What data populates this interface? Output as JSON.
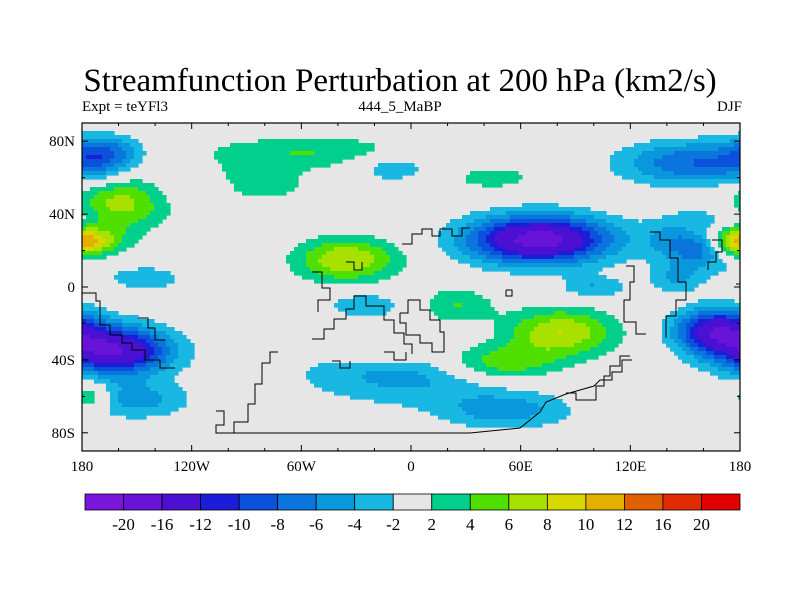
{
  "title": "Streamfunction Perturbation at 200 hPa (km2/s)",
  "subtitle_left": "Expt = teYFl3",
  "subtitle_center": "444_5_MaBP",
  "subtitle_right": "DJF",
  "map": {
    "lon_range": [
      -180,
      180
    ],
    "lat_range": [
      -90,
      90
    ],
    "lon_ticks": [
      {
        "value": -180,
        "label": "180"
      },
      {
        "value": -120,
        "label": "120W"
      },
      {
        "value": -60,
        "label": "60W"
      },
      {
        "value": 0,
        "label": "0"
      },
      {
        "value": 60,
        "label": "60E"
      },
      {
        "value": 120,
        "label": "120E"
      },
      {
        "value": 180,
        "label": "180"
      }
    ],
    "lat_ticks": [
      {
        "value": 80,
        "label": "80N"
      },
      {
        "value": 40,
        "label": "40N"
      },
      {
        "value": 0,
        "label": "0"
      },
      {
        "value": -40,
        "label": "40S"
      },
      {
        "value": -80,
        "label": "80S"
      }
    ],
    "background_color": "#e6e6e6",
    "features": [
      {
        "lon": 164,
        "lat": 26,
        "amp": -14,
        "rx": 26,
        "ry": 13
      },
      {
        "lon": 70,
        "lat": 26,
        "amp": -18,
        "rx": 38,
        "ry": 13
      },
      {
        "lon": -162,
        "lat": -35,
        "amp": -16,
        "rx": 30,
        "ry": 13
      },
      {
        "lon": 167,
        "lat": -24,
        "amp": -14,
        "rx": 22,
        "ry": 12
      },
      {
        "lon": 155,
        "lat": 68,
        "amp": -8,
        "rx": 40,
        "ry": 12
      },
      {
        "lon": -170,
        "lat": 70,
        "amp": -5,
        "rx": 18,
        "ry": 12
      },
      {
        "lon": -150,
        "lat": -62,
        "amp": -5,
        "rx": 28,
        "ry": 10
      },
      {
        "lon": 0,
        "lat": -48,
        "amp": -5,
        "rx": 60,
        "ry": 16
      },
      {
        "lon": 52,
        "lat": -68,
        "amp": -5,
        "rx": 35,
        "ry": 10
      },
      {
        "lon": -115,
        "lat": 55,
        "amp": -3,
        "rx": 22,
        "ry": 8
      },
      {
        "lon": -88,
        "lat": 57,
        "amp": 4,
        "rx": 30,
        "ry": 10
      },
      {
        "lon": -10,
        "lat": 66,
        "amp": -4,
        "rx": 22,
        "ry": 8
      },
      {
        "lon": -25,
        "lat": -10,
        "amp": -4,
        "rx": 20,
        "ry": 7
      },
      {
        "lon": 100,
        "lat": 0,
        "amp": -4,
        "rx": 18,
        "ry": 6
      },
      {
        "lon": 145,
        "lat": 5,
        "amp": -4,
        "rx": 15,
        "ry": 8
      },
      {
        "lon": -145,
        "lat": 5,
        "amp": -3,
        "rx": 25,
        "ry": 8
      },
      {
        "lon": -160,
        "lat": 46,
        "amp": 7,
        "rx": 26,
        "ry": 16
      },
      {
        "lon": -175,
        "lat": 25,
        "amp": 10,
        "rx": 18,
        "ry": 9
      },
      {
        "lon": 175,
        "lat": 25,
        "amp": 12,
        "rx": 14,
        "ry": 9
      },
      {
        "lon": 158,
        "lat": 30,
        "amp": 6,
        "rx": 14,
        "ry": 8
      },
      {
        "lon": -35,
        "lat": 15,
        "amp": 8,
        "rx": 28,
        "ry": 12
      },
      {
        "lon": 82,
        "lat": -25,
        "amp": 8,
        "rx": 30,
        "ry": 13
      },
      {
        "lon": 48,
        "lat": -42,
        "amp": 7,
        "rx": 32,
        "ry": 10
      },
      {
        "lon": 25,
        "lat": -10,
        "amp": 4,
        "rx": 20,
        "ry": 10
      },
      {
        "lon": -10,
        "lat": -35,
        "amp": 4,
        "rx": 30,
        "ry": 7
      },
      {
        "lon": -175,
        "lat": -60,
        "amp": 5,
        "rx": 10,
        "ry": 8
      },
      {
        "lon": -55,
        "lat": 74,
        "amp": 4,
        "rx": 60,
        "ry": 9
      },
      {
        "lon": 45,
        "lat": 60,
        "amp": 3,
        "rx": 25,
        "ry": 7
      },
      {
        "lon": -165,
        "lat": 75,
        "amp": -3,
        "rx": 20,
        "ry": 8
      }
    ]
  },
  "colorbar": {
    "colors": [
      "#7a16dc",
      "#6814d8",
      "#4c10d2",
      "#1c1dd8",
      "#0a52dc",
      "#0a75dc",
      "#0a98dc",
      "#18b8e2",
      "#e6e6e6",
      "#00d08c",
      "#50e000",
      "#a8e000",
      "#d6d800",
      "#e4b000",
      "#e06000",
      "#e02c00",
      "#e00000"
    ],
    "levels": [
      -20,
      -16,
      -12,
      -10,
      -8,
      -6,
      -4,
      -2,
      2,
      4,
      6,
      8,
      10,
      12,
      16,
      20
    ],
    "labels": [
      "-20",
      "-16",
      "-12",
      "-10",
      "-8",
      "-6",
      "-4",
      "-2",
      "2",
      "4",
      "6",
      "8",
      "10",
      "12",
      "16",
      "20"
    ]
  }
}
